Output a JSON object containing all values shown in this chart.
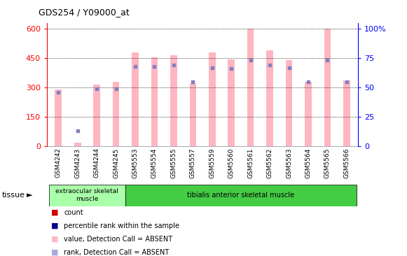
{
  "title": "GDS254 / Y09000_at",
  "samples": [
    "GSM4242",
    "GSM4243",
    "GSM4244",
    "GSM4245",
    "GSM5553",
    "GSM5554",
    "GSM5555",
    "GSM5557",
    "GSM5559",
    "GSM5560",
    "GSM5561",
    "GSM5562",
    "GSM5563",
    "GSM5564",
    "GSM5565",
    "GSM5566"
  ],
  "pink_bar_values": [
    290,
    18,
    315,
    330,
    480,
    455,
    465,
    320,
    480,
    445,
    600,
    490,
    440,
    330,
    600,
    335
  ],
  "blue_sq_percentiles": [
    46,
    13,
    49,
    49,
    68,
    68,
    69,
    55,
    67,
    66,
    73,
    69,
    67,
    55,
    73,
    55
  ],
  "blue_sq_show": [
    true,
    true,
    true,
    true,
    true,
    true,
    true,
    true,
    true,
    true,
    true,
    true,
    true,
    true,
    true,
    true
  ],
  "pink_bar_color": "#FFB6C1",
  "blue_sq_color": "#8080C0",
  "left_y_ticks": [
    0,
    150,
    300,
    450,
    600
  ],
  "left_ylim": [
    0,
    630
  ],
  "right_y_ticks": [
    0,
    25,
    50,
    75,
    100
  ],
  "right_y_labels": [
    "0",
    "25",
    "50",
    "75",
    "100%"
  ],
  "right_ylim": [
    0,
    105
  ],
  "tissue_group1_label": "extraocular skeletal\nmuscle",
  "tissue_group1_color": "#AAFFAA",
  "tissue_group1_range": [
    0,
    3
  ],
  "tissue_group2_label": "tibialis anterior skeletal muscle",
  "tissue_group2_color": "#44CC44",
  "tissue_group2_range": [
    4,
    15
  ],
  "legend_items": [
    {
      "label": "count",
      "color": "#CC0000"
    },
    {
      "label": "percentile rank within the sample",
      "color": "#000088"
    },
    {
      "label": "value, Detection Call = ABSENT",
      "color": "#FFB6C1"
    },
    {
      "label": "rank, Detection Call = ABSENT",
      "color": "#AAAADD"
    }
  ]
}
